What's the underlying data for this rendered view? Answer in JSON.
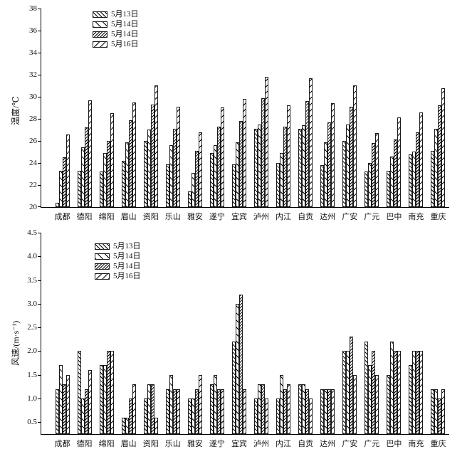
{
  "figure": {
    "background": "#ffffff",
    "ink_color": "#000000"
  },
  "chart_data": [
    {
      "type": "bar",
      "id": "temperature",
      "ylabel": "温度/℃",
      "xlabel": "",
      "ylim": [
        20,
        38
      ],
      "yticks": [
        "20",
        "22",
        "24",
        "26",
        "28",
        "30",
        "32",
        "34",
        "36",
        "38"
      ],
      "grid": false,
      "legend_position": "upper-left-inside",
      "legend": [
        "5月13日",
        "5月14日",
        "5月14日",
        "5月16日"
      ],
      "hatches": [
        "fine-forward-diagonal",
        "sparse-forward-diagonal",
        "fine-backward-diagonal",
        "sparse-backward-diagonal"
      ],
      "categories": [
        "成都",
        "德阳",
        "绵阳",
        "眉山",
        "资阳",
        "乐山",
        "雅安",
        "遂宁",
        "宜宾",
        "泸州",
        "内江",
        "自贡",
        "达州",
        "广安",
        "广元",
        "巴中",
        "南充",
        "重庆"
      ],
      "series": [
        {
          "name": "5月13日",
          "values": [
            20.4,
            23.3,
            23.2,
            24.2,
            26.0,
            23.9,
            21.4,
            24.9,
            23.9,
            27.1,
            24.0,
            27.1,
            23.8,
            26.0,
            23.2,
            23.3,
            24.8,
            25.1
          ]
        },
        {
          "name": "5月14日",
          "values": [
            23.3,
            25.4,
            24.9,
            25.9,
            27.0,
            25.6,
            23.1,
            25.6,
            25.9,
            27.5,
            24.9,
            27.4,
            25.9,
            27.5,
            24.0,
            24.6,
            25.0,
            27.1
          ]
        },
        {
          "name": "5月14日",
          "values": [
            24.5,
            27.2,
            26.0,
            27.9,
            29.3,
            27.1,
            25.1,
            27.3,
            27.8,
            29.9,
            27.3,
            29.6,
            27.7,
            29.1,
            25.8,
            26.1,
            26.8,
            29.2
          ]
        },
        {
          "name": "5月16日",
          "values": [
            26.6,
            29.7,
            28.5,
            29.5,
            31.0,
            29.1,
            26.8,
            29.0,
            29.8,
            31.8,
            29.2,
            31.7,
            29.4,
            31.0,
            26.7,
            28.1,
            28.6,
            30.8
          ]
        }
      ]
    },
    {
      "type": "bar",
      "id": "wind-speed",
      "ylabel": "风速/(m·s⁻¹)",
      "xlabel": "",
      "ylim": [
        0.25,
        4.5
      ],
      "yticks": [
        "0.5",
        "1.0",
        "1.5",
        "2.0",
        "2.5",
        "3.0",
        "3.5",
        "4.0",
        "4.5"
      ],
      "grid": false,
      "legend_position": "upper-left-inside",
      "legend": [
        "5月13日",
        "5月14日",
        "5月14日",
        "5月16日"
      ],
      "hatches": [
        "fine-forward-diagonal",
        "sparse-forward-diagonal",
        "fine-backward-diagonal",
        "sparse-backward-diagonal"
      ],
      "categories": [
        "成都",
        "德阳",
        "绵阳",
        "眉山",
        "资阳",
        "乐山",
        "雅安",
        "遂宁",
        "宜宾",
        "泸州",
        "内江",
        "自贡",
        "达州",
        "广安",
        "广元",
        "巴中",
        "南充",
        "重庆"
      ],
      "series": [
        {
          "name": "5月13日",
          "values": [
            1.2,
            2.0,
            1.7,
            0.6,
            1.0,
            1.2,
            1.0,
            1.3,
            2.2,
            1.0,
            1.0,
            1.3,
            1.2,
            2.0,
            2.2,
            1.5,
            1.7,
            1.2
          ]
        },
        {
          "name": "5月14日",
          "values": [
            1.7,
            1.0,
            1.7,
            0.6,
            1.3,
            1.5,
            1.0,
            1.5,
            3.0,
            1.3,
            1.5,
            1.3,
            1.2,
            2.0,
            1.7,
            2.2,
            2.0,
            1.2
          ]
        },
        {
          "name": "5月14日",
          "values": [
            1.3,
            1.2,
            2.0,
            1.0,
            1.3,
            1.2,
            1.2,
            1.2,
            3.2,
            1.3,
            1.2,
            1.2,
            1.2,
            2.3,
            2.0,
            2.0,
            2.0,
            1.0
          ]
        },
        {
          "name": "5月16日",
          "values": [
            1.5,
            1.6,
            2.0,
            1.3,
            0.6,
            1.2,
            1.5,
            1.2,
            1.2,
            1.0,
            1.3,
            1.0,
            1.2,
            1.5,
            1.5,
            2.0,
            2.0,
            1.2
          ]
        }
      ]
    }
  ]
}
